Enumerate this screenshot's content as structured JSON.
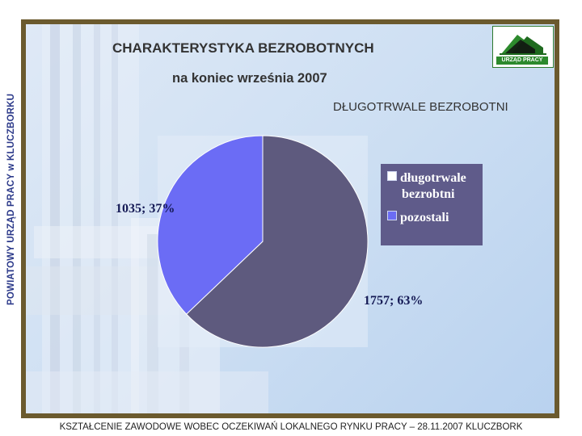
{
  "vertical_text": "POWIATOWY URZĄD PRACY w KLUCZBORKU",
  "logo": {
    "text": "URZĄD PRACY"
  },
  "footer": "KSZTAŁCENIE ZAWODOWE WOBEC OCZEKIWAŃ LOKALNEGO RYNKU PRACY – 28.11.2007 KLUCZBORK",
  "colors": {
    "slice_dlugotrwale": "#5e5a7e",
    "slice_pozostali": "#6b6cf5",
    "legend_bg": "#5f5b8a"
  },
  "chart_data": {
    "type": "pie",
    "title": "CHARAKTERYSTYKA BEZROBOTNYCH",
    "subtitle": "na koniec września 2007",
    "chart_title": "DŁUGOTRWALE BEZROBOTNI",
    "legend_position": "right",
    "slices": [
      {
        "name": "długotrwale bezrobtni",
        "value": 1757,
        "percent": 63,
        "label": "1757; 63%"
      },
      {
        "name": "pozostali",
        "value": 1035,
        "percent": 37,
        "label": "1035; 37%"
      }
    ],
    "legend": [
      {
        "line1": "długotrwale",
        "line2": "bezrobtni"
      },
      {
        "line1": "pozostali",
        "line2": ""
      }
    ]
  }
}
